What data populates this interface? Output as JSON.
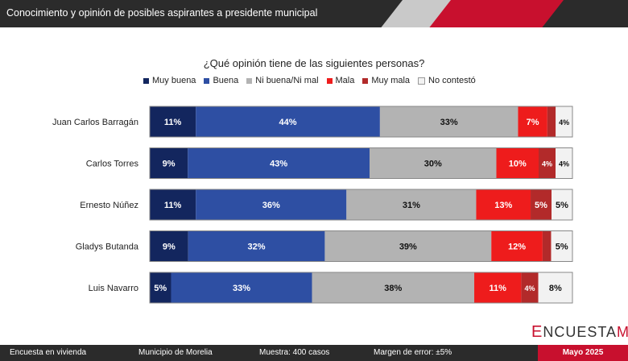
{
  "header": {
    "title": "Conocimiento y opinión de posibles aspirantes a presidente municipal"
  },
  "legend_items": [
    {
      "label": "Muy buena",
      "color": "#13265e"
    },
    {
      "label": "Buena",
      "color": "#2e4fa3"
    },
    {
      "label": "Ni buena/Ni mal",
      "color": "#b3b3b3"
    },
    {
      "label": "Mala",
      "color": "#ee1c1c"
    },
    {
      "label": "Muy mala",
      "color": "#b22a2a"
    },
    {
      "label": "No contestó",
      "color": "#f2f2f2"
    }
  ],
  "chart_data": {
    "type": "bar",
    "orientation": "horizontal-stacked-100",
    "title": "¿Qué opinión tiene de las siguientes personas?",
    "categories": [
      "Juan Carlos Barragán",
      "Carlos Torres",
      "Ernesto Núñez",
      "Gladys Butanda",
      "Luis Navarro"
    ],
    "series": [
      {
        "name": "Muy buena",
        "color": "#13265e",
        "values": [
          11,
          9,
          11,
          9,
          5
        ]
      },
      {
        "name": "Buena",
        "color": "#2e4fa3",
        "values": [
          44,
          43,
          36,
          32,
          33
        ]
      },
      {
        "name": "Ni buena/Ni mal",
        "color": "#b3b3b3",
        "values": [
          33,
          30,
          31,
          39,
          38
        ]
      },
      {
        "name": "Mala",
        "color": "#ee1c1c",
        "values": [
          7,
          10,
          13,
          12,
          11
        ]
      },
      {
        "name": "Muy mala",
        "color": "#b22a2a",
        "values": [
          2,
          4,
          5,
          2,
          4
        ]
      },
      {
        "name": "No contestó",
        "color": "#f2f2f2",
        "values": [
          4,
          4,
          5,
          5,
          8
        ]
      }
    ],
    "labels": [
      [
        "11%",
        "44%",
        "33%",
        "7%",
        "",
        "4%"
      ],
      [
        "9%",
        "43%",
        "30%",
        "10%",
        "4%",
        "4%"
      ],
      [
        "11%",
        "36%",
        "31%",
        "13%",
        "5%",
        "5%"
      ],
      [
        "9%",
        "32%",
        "39%",
        "12%",
        "",
        "5%"
      ],
      [
        "5%",
        "33%",
        "38%",
        "11%",
        "4%",
        "8%"
      ]
    ],
    "legend_position": "top",
    "grid": false
  },
  "logo": {
    "e": "E",
    "text": "NCUESTA",
    "mx": "MX"
  },
  "footer": {
    "survey_type": "Encuesta en vivienda",
    "municipality": "Municipio de Morelia",
    "sample": "Muestra: 400 casos",
    "margin": "Margen de error: ±5%",
    "date": "Mayo 2025"
  }
}
